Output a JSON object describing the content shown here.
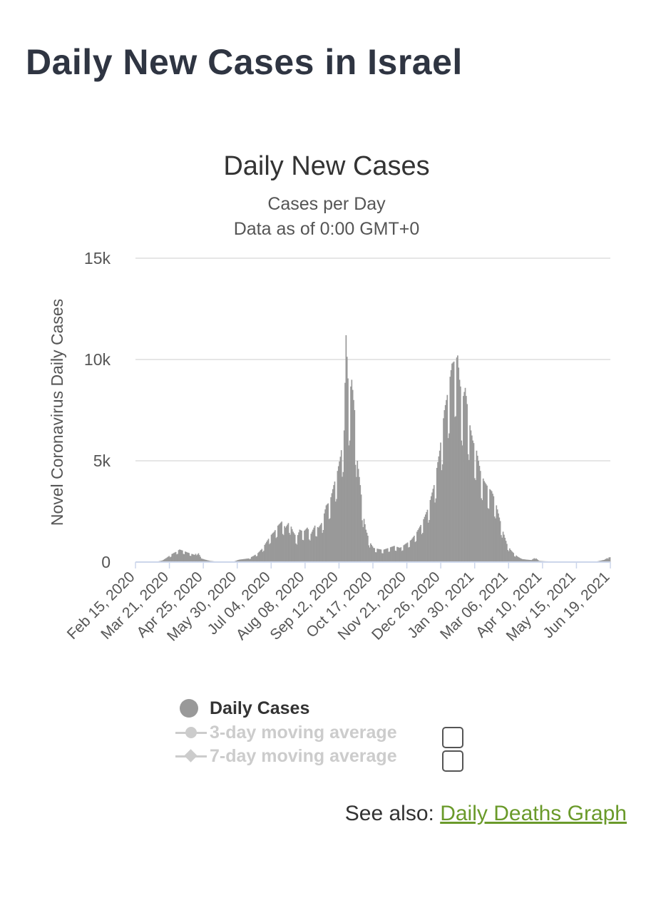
{
  "page": {
    "title": "Daily New Cases in Israel"
  },
  "legend": {
    "items": [
      {
        "label": "Daily Cases",
        "active": true,
        "marker": "dot"
      },
      {
        "label": "3-day moving average",
        "active": false,
        "marker": "circle-line"
      },
      {
        "label": "7-day moving average",
        "active": false,
        "marker": "diamond-line"
      }
    ]
  },
  "see_also": {
    "prefix": "See also:",
    "link_text": "Daily Deaths Graph"
  },
  "chart_data": {
    "type": "bar",
    "title": "Daily New Cases",
    "subtitle_lines": [
      "Cases per Day",
      "Data as of 0:00 GMT+0"
    ],
    "ylabel": "Novel Coronavirus Daily Cases",
    "xlabel": "",
    "ylim": [
      0,
      15000
    ],
    "y_ticks": [
      0,
      5000,
      10000,
      15000
    ],
    "y_tick_labels": [
      "0",
      "5k",
      "10k",
      "15k"
    ],
    "x_range": [
      "2020-02-15",
      "2021-07-01"
    ],
    "x_tick_labels": [
      "Feb 15, 2020",
      "Mar 21, 2020",
      "Apr 25, 2020",
      "May 30, 2020",
      "Jul 04, 2020",
      "Aug 08, 2020",
      "Sep 12, 2020",
      "Oct 17, 2020",
      "Nov 21, 2020",
      "Dec 26, 2020",
      "Jan 30, 2021",
      "Mar 06, 2021",
      "Apr 10, 2021",
      "May 15, 2021",
      "Jun 19, 2021"
    ],
    "grid": true,
    "bar_color": "#999999",
    "series_name": "Daily Cases",
    "points": [
      [
        "2020-02-15",
        0
      ],
      [
        "2020-03-08",
        20
      ],
      [
        "2020-03-14",
        80
      ],
      [
        "2020-03-18",
        200
      ],
      [
        "2020-03-24",
        400
      ],
      [
        "2020-03-28",
        500
      ],
      [
        "2020-04-01",
        620
      ],
      [
        "2020-04-05",
        560
      ],
      [
        "2020-04-09",
        480
      ],
      [
        "2020-04-13",
        420
      ],
      [
        "2020-04-17",
        350
      ],
      [
        "2020-04-20",
        520
      ],
      [
        "2020-04-24",
        180
      ],
      [
        "2020-04-28",
        120
      ],
      [
        "2020-05-03",
        60
      ],
      [
        "2020-05-10",
        25
      ],
      [
        "2020-05-20",
        10
      ],
      [
        "2020-05-28",
        20
      ],
      [
        "2020-06-03",
        120
      ],
      [
        "2020-06-08",
        150
      ],
      [
        "2020-06-13",
        180
      ],
      [
        "2020-06-18",
        300
      ],
      [
        "2020-06-23",
        450
      ],
      [
        "2020-06-28",
        700
      ],
      [
        "2020-07-02",
        1000
      ],
      [
        "2020-07-06",
        1300
      ],
      [
        "2020-07-10",
        1500
      ],
      [
        "2020-07-14",
        1800
      ],
      [
        "2020-07-18",
        2000
      ],
      [
        "2020-07-22",
        1700
      ],
      [
        "2020-07-26",
        2000
      ],
      [
        "2020-07-30",
        1500
      ],
      [
        "2020-08-03",
        1200
      ],
      [
        "2020-08-06",
        1600
      ],
      [
        "2020-08-10",
        1500
      ],
      [
        "2020-08-14",
        1700
      ],
      [
        "2020-08-18",
        1400
      ],
      [
        "2020-08-22",
        1800
      ],
      [
        "2020-08-26",
        1700
      ],
      [
        "2020-08-30",
        2000
      ],
      [
        "2020-09-03",
        2800
      ],
      [
        "2020-09-07",
        3000
      ],
      [
        "2020-09-11",
        3800
      ],
      [
        "2020-09-15",
        4500
      ],
      [
        "2020-09-18",
        5200
      ],
      [
        "2020-09-22",
        6500
      ],
      [
        "2020-09-24",
        11200
      ],
      [
        "2020-09-27",
        8000
      ],
      [
        "2020-09-30",
        9000
      ],
      [
        "2020-10-03",
        7500
      ],
      [
        "2020-10-06",
        5000
      ],
      [
        "2020-10-09",
        3800
      ],
      [
        "2020-10-12",
        2400
      ],
      [
        "2020-10-15",
        1600
      ],
      [
        "2020-10-19",
        1000
      ],
      [
        "2020-10-23",
        700
      ],
      [
        "2020-10-28",
        650
      ],
      [
        "2020-11-02",
        600
      ],
      [
        "2020-11-08",
        700
      ],
      [
        "2020-11-14",
        800
      ],
      [
        "2020-11-20",
        700
      ],
      [
        "2020-11-26",
        900
      ],
      [
        "2020-12-02",
        1100
      ],
      [
        "2020-12-08",
        1500
      ],
      [
        "2020-12-14",
        2000
      ],
      [
        "2020-12-20",
        2700
      ],
      [
        "2020-12-26",
        3800
      ],
      [
        "2021-01-01",
        5500
      ],
      [
        "2021-01-06",
        7500
      ],
      [
        "2021-01-10",
        8500
      ],
      [
        "2021-01-14",
        9800
      ],
      [
        "2021-01-18",
        10000
      ],
      [
        "2021-01-20",
        10200
      ],
      [
        "2021-01-22",
        9000
      ],
      [
        "2021-01-25",
        8000
      ],
      [
        "2021-01-28",
        8600
      ],
      [
        "2021-02-01",
        7000
      ],
      [
        "2021-02-05",
        6000
      ],
      [
        "2021-02-09",
        5500
      ],
      [
        "2021-02-13",
        4500
      ],
      [
        "2021-02-17",
        4000
      ],
      [
        "2021-02-21",
        3700
      ],
      [
        "2021-02-25",
        3500
      ],
      [
        "2021-03-01",
        3000
      ],
      [
        "2021-03-05",
        2200
      ],
      [
        "2021-03-09",
        1500
      ],
      [
        "2021-03-13",
        900
      ],
      [
        "2021-03-17",
        600
      ],
      [
        "2021-03-21",
        400
      ],
      [
        "2021-03-25",
        250
      ],
      [
        "2021-03-29",
        150
      ],
      [
        "2021-04-03",
        120
      ],
      [
        "2021-04-08",
        100
      ],
      [
        "2021-04-12",
        220
      ],
      [
        "2021-04-16",
        60
      ],
      [
        "2021-04-22",
        40
      ],
      [
        "2021-05-01",
        30
      ],
      [
        "2021-05-15",
        25
      ],
      [
        "2021-06-01",
        15
      ],
      [
        "2021-06-15",
        20
      ],
      [
        "2021-06-24",
        110
      ],
      [
        "2021-06-28",
        220
      ],
      [
        "2021-07-01",
        250
      ]
    ]
  }
}
